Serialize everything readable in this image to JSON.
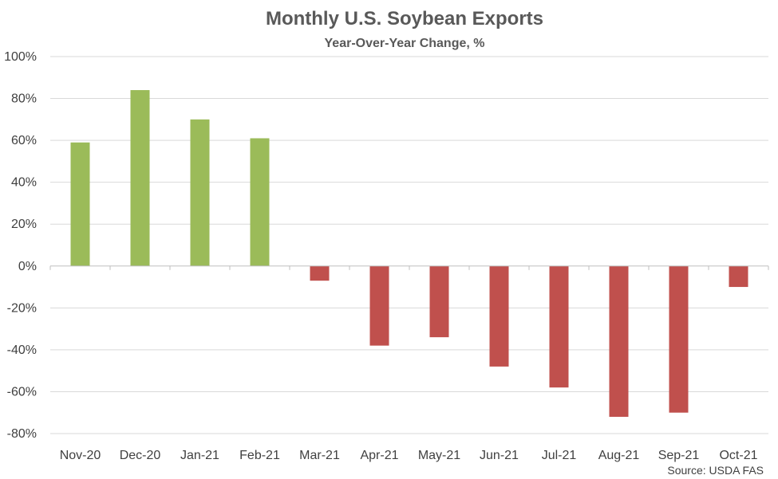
{
  "chart_data": {
    "type": "bar",
    "title": "Monthly U.S. Soybean Exports",
    "subtitle": "Year-Over-Year Change, %",
    "source": "Source: USDA FAS",
    "categories": [
      "Nov-20",
      "Dec-20",
      "Jan-21",
      "Feb-21",
      "Mar-21",
      "Apr-21",
      "May-21",
      "Jun-21",
      "Jul-21",
      "Aug-21",
      "Sep-21",
      "Oct-21"
    ],
    "values": [
      59,
      84,
      70,
      61,
      -7,
      -38,
      -34,
      -48,
      -58,
      -72,
      -70,
      -10
    ],
    "ylim": [
      -80,
      100
    ],
    "ytick_step": 20,
    "ytick_format": "percent",
    "grid": true,
    "legend": "none",
    "colors": {
      "positive": "#9bbb59",
      "negative": "#c0504d",
      "grid": "#d9d9d9",
      "axis": "#bfbfbf"
    }
  }
}
